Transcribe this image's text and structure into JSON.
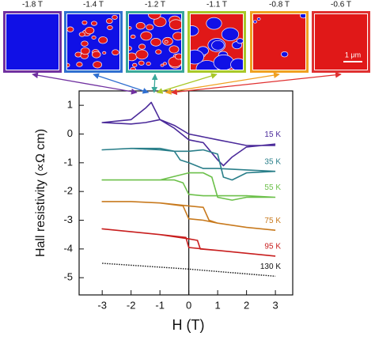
{
  "panels": [
    {
      "field": {
        "value": -1.8,
        "label": "-1.8 T"
      },
      "color": "#7030a0"
    },
    {
      "field": {
        "value": -1.4,
        "label": "-1.4 T"
      },
      "color": "#2f6fd0"
    },
    {
      "field": {
        "value": -1.2,
        "label": "-1.2 T"
      },
      "color": "#3aa89a"
    },
    {
      "field": {
        "value": -1.1,
        "label": "-1.1 T"
      },
      "color": "#a8c828"
    },
    {
      "field": {
        "value": -0.8,
        "label": "-0.8 T"
      },
      "color": "#f0a020"
    },
    {
      "field": {
        "value": -0.6,
        "label": "-0.6 T"
      },
      "color": "#e03030"
    }
  ],
  "scale_bar": "1 μm",
  "chart_data": {
    "type": "line",
    "x_label": "H (T)",
    "y_label": "Hall resistivity (∝Ω cm)",
    "xlim": [
      -3.8,
      3.6
    ],
    "ylim": [
      -5.6,
      1.5
    ],
    "xticks": [
      -3,
      -2,
      -1,
      0,
      1,
      2,
      3
    ],
    "yticks": [
      1,
      0,
      -1,
      -2,
      -3,
      -4,
      -5
    ],
    "vline": 0,
    "series": [
      {
        "name": "15 K",
        "color": "#4b2a9a",
        "x": [
          3,
          2,
          1.5,
          1,
          0.5,
          0,
          -0.5,
          -1,
          -1.5,
          -2,
          -3,
          -3,
          -2,
          -1.5,
          -1.3,
          -1,
          -0.5,
          0,
          0.5,
          1,
          1.2,
          1.5,
          2,
          3
        ],
        "values": [
          -0.4,
          -0.4,
          -0.3,
          -0.2,
          -0.1,
          0.0,
          0.3,
          0.5,
          0.4,
          0.35,
          0.4,
          0.4,
          0.5,
          0.9,
          1.1,
          0.5,
          0.2,
          -0.2,
          -0.3,
          -0.9,
          -1.1,
          -0.8,
          -0.45,
          -0.35
        ]
      },
      {
        "name": "35 K",
        "color": "#2a7f8a",
        "x": [
          3,
          2,
          1,
          0.5,
          0,
          -0.3,
          -0.5,
          -1,
          -2,
          -3,
          -3,
          -2,
          -1,
          -0.5,
          0,
          0.5,
          1,
          1.2,
          1.5,
          2,
          3
        ],
        "values": [
          -1.3,
          -1.25,
          -1.2,
          -1.2,
          -1.0,
          -0.9,
          -0.6,
          -0.5,
          -0.5,
          -0.55,
          -0.55,
          -0.5,
          -0.55,
          -0.6,
          -0.6,
          -0.55,
          -0.7,
          -1.5,
          -1.6,
          -1.35,
          -1.3
        ]
      },
      {
        "name": "55 K",
        "color": "#6cc04a",
        "x": [
          3,
          2,
          1,
          0.5,
          0,
          -0.2,
          -0.5,
          -1,
          -2,
          -3,
          -3,
          -2,
          -1,
          0,
          0.5,
          0.8,
          1,
          1.5,
          2,
          3
        ],
        "values": [
          -2.2,
          -2.15,
          -2.15,
          -2.15,
          -2.1,
          -1.7,
          -1.6,
          -1.6,
          -1.6,
          -1.6,
          -1.6,
          -1.6,
          -1.6,
          -1.35,
          -1.35,
          -1.5,
          -2.2,
          -2.3,
          -2.2,
          -2.2
        ]
      },
      {
        "name": "75 K",
        "color": "#c87a1e",
        "x": [
          3,
          2,
          1,
          0.5,
          0,
          -0.2,
          -1,
          -2,
          -3,
          -3,
          -2,
          -1,
          0,
          0.5,
          0.7,
          1,
          2,
          3
        ],
        "values": [
          -3.35,
          -3.25,
          -3.1,
          -3.0,
          -2.95,
          -2.5,
          -2.4,
          -2.35,
          -2.35,
          -2.35,
          -2.35,
          -2.4,
          -2.5,
          -2.55,
          -3.0,
          -3.1,
          -3.25,
          -3.35
        ]
      },
      {
        "name": "95 K",
        "color": "#c81e1e",
        "x": [
          3,
          2,
          1,
          0.5,
          0,
          -0.1,
          -1,
          -2,
          -3,
          -3,
          -2,
          -1,
          0,
          0.3,
          0.4,
          1,
          2,
          3
        ],
        "values": [
          -4.25,
          -4.15,
          -4.05,
          -4.0,
          -3.95,
          -3.6,
          -3.5,
          -3.4,
          -3.3,
          -3.3,
          -3.4,
          -3.5,
          -3.65,
          -3.7,
          -4.0,
          -4.05,
          -4.15,
          -4.25
        ]
      },
      {
        "name": "130 K",
        "color": "#111111",
        "dotted": true,
        "x": [
          -3,
          0,
          3
        ],
        "values": [
          -4.5,
          -4.7,
          -4.95
        ]
      }
    ]
  }
}
